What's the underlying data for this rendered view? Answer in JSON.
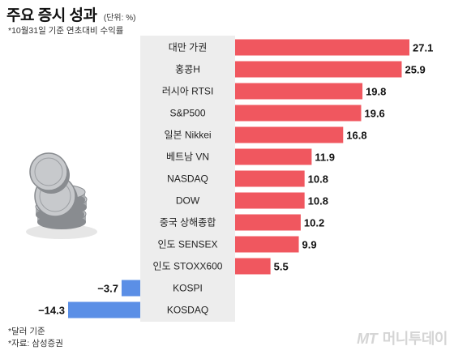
{
  "header": {
    "title": "주요 증시 성과",
    "unit": "(단위: %)",
    "subtitle": "*10월31일 기준 연초대비 수익률"
  },
  "chart_data": {
    "type": "bar",
    "orientation": "horizontal",
    "categories": [
      "대만 가권",
      "홍콩H",
      "러시아 RTSI",
      "S&P500",
      "일본 Nikkei",
      "베트남 VN",
      "NASDAQ",
      "DOW",
      "중국 상해종합",
      "인도 SENSEX",
      "인도 STOXX600",
      "KOSPI",
      "KOSDAQ"
    ],
    "values": [
      27.1,
      25.9,
      19.8,
      19.6,
      16.8,
      11.9,
      10.8,
      10.8,
      10.2,
      9.9,
      5.5,
      -3.7,
      -14.3
    ],
    "value_labels": [
      "27.1",
      "25.9",
      "19.8",
      "19.6",
      "16.8",
      "11.9",
      "10.8",
      "10.8",
      "10.2",
      "9.9",
      "5.5",
      "−3.7",
      "−14.3"
    ],
    "title": "주요 증시 성과",
    "unit": "(단위: %)",
    "xlim": [
      -14.3,
      27.1
    ],
    "grid": false,
    "legend": "none",
    "colors": {
      "positive": "#f0575f",
      "negative": "#5b8fe6",
      "label_bg": "#ededed"
    }
  },
  "footer": {
    "note": "*달러 기준",
    "source": "*자료: 삼성증권",
    "brand_latin": "MT",
    "brand_korean": "머니투데이"
  },
  "decoration": {
    "icon": "coin-stack-icon"
  }
}
